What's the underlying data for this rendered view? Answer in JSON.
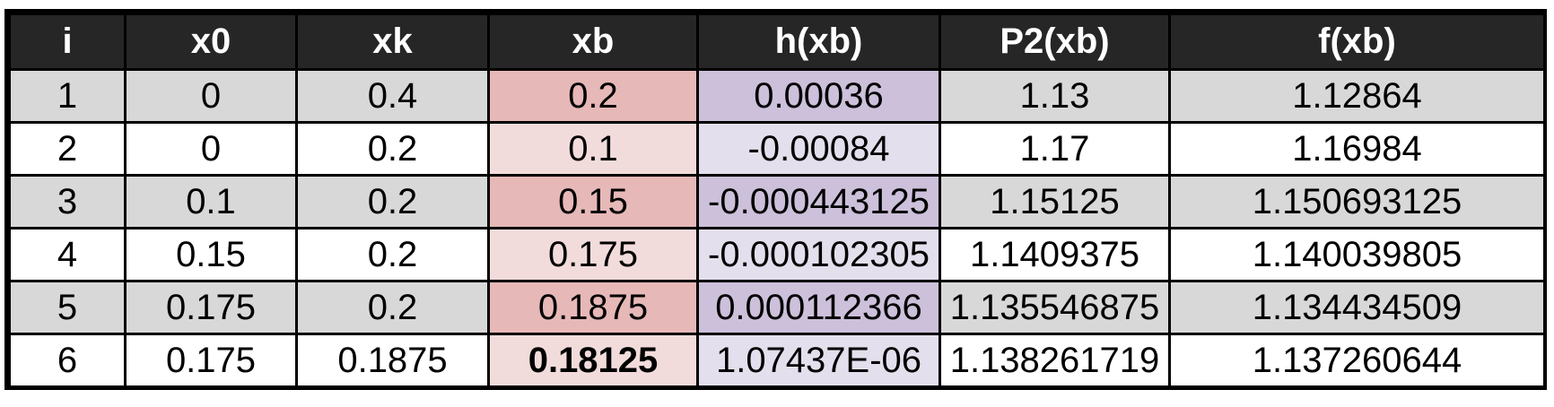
{
  "table": {
    "headers": [
      "i",
      "x0",
      "xk",
      "xb",
      "h(xb)",
      "P2(xb)",
      "f(xb)"
    ],
    "rows": [
      [
        "1",
        "0",
        "0.4",
        "0.2",
        "0.00036",
        "1.13",
        "1.12864"
      ],
      [
        "2",
        "0",
        "0.2",
        "0.1",
        "-0.00084",
        "1.17",
        "1.16984"
      ],
      [
        "3",
        "0.1",
        "0.2",
        "0.15",
        "-0.000443125",
        "1.15125",
        "1.150693125"
      ],
      [
        "4",
        "0.15",
        "0.2",
        "0.175",
        "-0.000102305",
        "1.1409375",
        "1.140039805"
      ],
      [
        "5",
        "0.175",
        "0.2",
        "0.1875",
        "0.000112366",
        "1.135546875",
        "1.134434509"
      ],
      [
        "6",
        "0.175",
        "0.1875",
        "0.18125",
        "1.07437E-06",
        "1.138261719",
        "1.137260644"
      ]
    ],
    "colors": {
      "header_bg": "#262626",
      "header_text": "#ffffff",
      "row_shaded": "#d8d8d8",
      "row_plain": "#ffffff",
      "xb_shaded": "#e6b8b7",
      "xb_plain": "#f2dcdb",
      "hxb_shaded": "#ccc0da",
      "hxb_plain": "#e4dfec"
    },
    "bold_cell": "0.18125"
  }
}
